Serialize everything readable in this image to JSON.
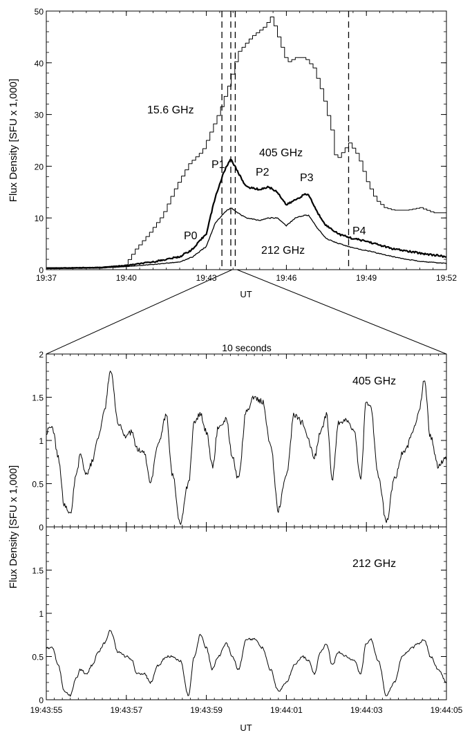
{
  "figure": {
    "top_ylabel": "Flux Density [SFU x 1,000]",
    "bottom_ylabel": "Flux Density [SFU x 1,000]",
    "top_xlabel": "UT",
    "bottom_xlabel": "UT",
    "zoom_caption": "10 seconds"
  },
  "chart_data": [
    {
      "type": "line",
      "x_unit": "UT",
      "xlim": [
        "19:37",
        "19:52"
      ],
      "ylim": [
        0,
        50
      ],
      "xticks": [
        "19:37",
        "19:40",
        "19:43",
        "19:46",
        "19:49",
        "19:52"
      ],
      "yticks": [
        "0",
        "10",
        "20",
        "30",
        "40",
        "50"
      ],
      "vlines": [
        "19:43:35",
        "19:43:55",
        "19:44:05",
        "19:48:20"
      ],
      "series": [
        {
          "name": "15.6 GHz",
          "x": [
            "19:37",
            "19:38",
            "19:39",
            "19:39:55",
            "19:40:20",
            "19:40:50",
            "19:41:20",
            "19:41:50",
            "19:42:20",
            "19:42:50",
            "19:43:10",
            "19:43:30",
            "19:43:50",
            "19:44:10",
            "19:44:40",
            "19:45:10",
            "19:45:25",
            "19:45:40",
            "19:46:00",
            "19:46:20",
            "19:46:40",
            "19:47:00",
            "19:47:20",
            "19:47:40",
            "19:47:50",
            "19:48:20",
            "19:48:40",
            "19:49:00",
            "19:49:20",
            "19:49:40",
            "19:50:00",
            "19:50:30",
            "19:51:00",
            "19:51:30",
            "19:52"
          ],
          "y": [
            0.4,
            0.4,
            0.5,
            0.8,
            4,
            7,
            10.5,
            16,
            20.5,
            23,
            27,
            31,
            36,
            42,
            45,
            47,
            49,
            45,
            40,
            41,
            41,
            39,
            34,
            27,
            21,
            24.5,
            22,
            17,
            13.5,
            12,
            11.5,
            11.5,
            12,
            11,
            11
          ]
        },
        {
          "name": "405 GHz",
          "x": [
            "19:37",
            "19:39",
            "19:40",
            "19:41",
            "19:42",
            "19:42:30",
            "19:43",
            "19:43:20",
            "19:43:40",
            "19:43:55",
            "19:44:10",
            "19:44:30",
            "19:45:00",
            "19:45:20",
            "19:45:40",
            "19:46:00",
            "19:46:20",
            "19:46:40",
            "19:46:50",
            "19:47:10",
            "19:47:30",
            "19:48:00",
            "19:48:30",
            "19:49",
            "19:50",
            "19:51",
            "19:52"
          ],
          "y": [
            0.3,
            0.4,
            0.8,
            1.5,
            2.5,
            4,
            7,
            14,
            19,
            21.5,
            19,
            16,
            15.5,
            16,
            15,
            12.5,
            13.5,
            14.5,
            14.5,
            11,
            8.5,
            6.8,
            6,
            5.5,
            4,
            3.2,
            2.5
          ]
        },
        {
          "name": "212 GHz",
          "x": [
            "19:37",
            "19:39",
            "19:40",
            "19:41",
            "19:42",
            "19:42:30",
            "19:43",
            "19:43:20",
            "19:43:40",
            "19:43:55",
            "19:44:10",
            "19:44:30",
            "19:45:00",
            "19:45:20",
            "19:45:40",
            "19:46:00",
            "19:46:20",
            "19:46:40",
            "19:46:50",
            "19:47:10",
            "19:47:30",
            "19:48:00",
            "19:48:30",
            "19:49",
            "19:50",
            "19:51",
            "19:52"
          ],
          "y": [
            0.2,
            0.3,
            0.6,
            1,
            1.5,
            2.5,
            4.5,
            9,
            11,
            12,
            11,
            10,
            9.5,
            10,
            10,
            8.5,
            10,
            10.5,
            10.5,
            8,
            6,
            5,
            4.2,
            3.7,
            2.5,
            1.6,
            1.2
          ]
        }
      ],
      "annotations": [
        {
          "text": "15.6 GHz"
        },
        {
          "text": "405 GHz"
        },
        {
          "text": "212 GHz"
        },
        {
          "text": "P0"
        },
        {
          "text": "P1"
        },
        {
          "text": "P2"
        },
        {
          "text": "P3"
        },
        {
          "text": "P4"
        }
      ]
    },
    {
      "type": "line",
      "x_unit": "UT",
      "xlim": [
        "19:43:55",
        "19:44:05"
      ],
      "ylim": [
        0,
        2
      ],
      "xticks": [
        "19:43:55",
        "19:43:57",
        "19:43:59",
        "19:44:01",
        "19:44:03",
        "19:44:05"
      ],
      "yticks": [
        "0",
        "0.5",
        "1",
        "1.5",
        "2"
      ],
      "series": [
        {
          "name": "405 GHz",
          "x_seconds_after_19_43_55": [
            0,
            0.15,
            0.3,
            0.45,
            0.6,
            0.75,
            0.85,
            1.0,
            1.15,
            1.3,
            1.45,
            1.6,
            1.8,
            2.0,
            2.15,
            2.25,
            2.45,
            2.6,
            2.8,
            3.0,
            3.15,
            3.35,
            3.55,
            3.7,
            3.85,
            4.0,
            4.15,
            4.3,
            4.5,
            4.65,
            4.8,
            5.0,
            5.2,
            5.4,
            5.6,
            5.8,
            6.0,
            6.2,
            6.4,
            6.55,
            6.7,
            6.85,
            7.0,
            7.15,
            7.3,
            7.5,
            7.7,
            7.85,
            8.0,
            8.1,
            8.3,
            8.5,
            8.7,
            8.9,
            9.0,
            9.15,
            9.3,
            9.45,
            9.6,
            9.8,
            10.0
          ],
          "y": [
            1.1,
            1.15,
            0.8,
            0.25,
            0.15,
            0.6,
            0.85,
            0.6,
            0.75,
            1.05,
            1.35,
            1.8,
            1.2,
            1.05,
            1.1,
            0.9,
            0.85,
            0.5,
            0.95,
            1.3,
            0.6,
            0.05,
            0.5,
            1.2,
            1.3,
            1.1,
            0.7,
            1.15,
            1.25,
            0.8,
            0.55,
            1.35,
            1.5,
            1.45,
            0.95,
            0.2,
            0.6,
            1.3,
            1.2,
            1.0,
            0.8,
            1.1,
            1.3,
            0.55,
            1.2,
            1.25,
            1.1,
            0.55,
            1.45,
            1.4,
            0.6,
            0.05,
            0.55,
            0.85,
            0.9,
            1.1,
            1.3,
            1.7,
            1.05,
            0.7,
            0.8
          ]
        },
        {
          "name": "212 GHz",
          "x_seconds_after_19_43_55": [
            0,
            0.15,
            0.3,
            0.45,
            0.6,
            0.75,
            0.85,
            1.0,
            1.15,
            1.3,
            1.45,
            1.6,
            1.8,
            2.0,
            2.15,
            2.25,
            2.45,
            2.6,
            2.8,
            3.0,
            3.15,
            3.35,
            3.55,
            3.7,
            3.85,
            4.0,
            4.15,
            4.3,
            4.5,
            4.65,
            4.8,
            5.0,
            5.2,
            5.4,
            5.6,
            5.8,
            6.0,
            6.2,
            6.4,
            6.55,
            6.7,
            6.85,
            7.0,
            7.15,
            7.3,
            7.5,
            7.7,
            7.85,
            8.0,
            8.1,
            8.3,
            8.5,
            8.7,
            8.9,
            9.0,
            9.15,
            9.3,
            9.45,
            9.6,
            9.8,
            10.0
          ],
          "y": [
            0.6,
            0.6,
            0.4,
            0.1,
            0.05,
            0.25,
            0.35,
            0.3,
            0.4,
            0.55,
            0.65,
            0.8,
            0.55,
            0.5,
            0.45,
            0.3,
            0.3,
            0.2,
            0.4,
            0.5,
            0.5,
            0.45,
            0.05,
            0.5,
            0.75,
            0.6,
            0.35,
            0.5,
            0.65,
            0.5,
            0.35,
            0.7,
            0.7,
            0.6,
            0.35,
            0.1,
            0.2,
            0.4,
            0.5,
            0.45,
            0.3,
            0.55,
            0.65,
            0.4,
            0.55,
            0.5,
            0.45,
            0.3,
            0.65,
            0.7,
            0.45,
            0.05,
            0.2,
            0.5,
            0.55,
            0.6,
            0.65,
            0.7,
            0.5,
            0.35,
            0.2
          ]
        }
      ],
      "annotations": [
        {
          "text": "405 GHz"
        },
        {
          "text": "212 GHz"
        }
      ]
    }
  ]
}
